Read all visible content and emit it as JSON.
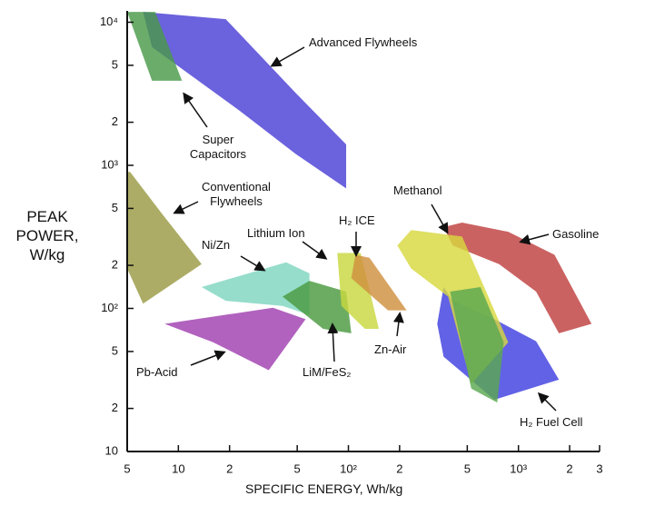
{
  "chart_data": {
    "type": "region",
    "x_label": "SPECIFIC ENERGY, Wh/kg",
    "y_label": "PEAK POWER, W/kg",
    "xscale": "log",
    "yscale": "log",
    "xlim": [
      5,
      3000
    ],
    "ylim": [
      10,
      12000
    ],
    "xticks": [
      5,
      10,
      {
        "value": 20,
        "label": "2"
      },
      {
        "value": 50,
        "label": "5"
      },
      {
        "value": 100,
        "label": "10²"
      },
      {
        "value": 200,
        "label": "2"
      },
      {
        "value": 500,
        "label": "5"
      },
      {
        "value": 1000,
        "label": "10³"
      },
      {
        "value": 2000,
        "label": "2"
      },
      {
        "value": 3000,
        "label": "3"
      }
    ],
    "yticks": [
      10,
      {
        "value": 20,
        "label": "2"
      },
      {
        "value": 50,
        "label": "5"
      },
      {
        "value": 100,
        "label": "10²"
      },
      {
        "value": 200,
        "label": "2"
      },
      {
        "value": 500,
        "label": "5"
      },
      {
        "value": 1000,
        "label": "10³"
      },
      {
        "value": 2000,
        "label": "2"
      },
      {
        "value": 5000,
        "label": "5"
      },
      {
        "value": 10000,
        "label": "10⁴"
      }
    ],
    "regions": [
      {
        "color": "#4b3fd6",
        "points": [
          [
            6.2,
            11800
          ],
          [
            19,
            10500
          ],
          [
            49,
            3200
          ],
          [
            97,
            1400
          ],
          [
            97,
            690
          ],
          [
            49,
            1200
          ],
          [
            23,
            2400
          ],
          [
            7,
            6700
          ]
        ]
      },
      {
        "color": "#4a9a4a",
        "points": [
          [
            5,
            11800
          ],
          [
            7.3,
            11800
          ],
          [
            10.5,
            3900
          ],
          [
            7,
            3900
          ]
        ]
      },
      {
        "color": "#9a9a44",
        "points": [
          [
            5,
            900
          ],
          [
            5.2,
            900
          ],
          [
            8,
            460
          ],
          [
            13.7,
            204
          ],
          [
            6.2,
            108
          ],
          [
            5,
            190
          ]
        ]
      },
      {
        "color": "#a040b0",
        "points": [
          [
            8.3,
            78
          ],
          [
            36,
            101
          ],
          [
            56,
            84
          ],
          [
            34,
            37
          ],
          [
            16,
            58
          ]
        ]
      },
      {
        "color": "#7fd6c0",
        "points": [
          [
            13.7,
            141
          ],
          [
            43,
            210
          ],
          [
            59,
            176
          ],
          [
            59,
            90
          ],
          [
            41,
            104
          ],
          [
            19,
            113
          ]
        ]
      },
      {
        "color": "#4a9a40",
        "points": [
          [
            41,
            121
          ],
          [
            59,
            156
          ],
          [
            97,
            131
          ],
          [
            104,
            67
          ],
          [
            71,
            72
          ]
        ]
      },
      {
        "color": "#c8d840",
        "points": [
          [
            86,
            244
          ],
          [
            118,
            244
          ],
          [
            151,
            72
          ],
          [
            125,
            72
          ],
          [
            91,
            104
          ]
        ]
      },
      {
        "color": "#d09040",
        "points": [
          [
            110,
            237
          ],
          [
            133,
            226
          ],
          [
            220,
            97
          ],
          [
            171,
            97
          ],
          [
            104,
            163
          ]
        ]
      },
      {
        "color": "#c04040",
        "points": [
          [
            363,
            370
          ],
          [
            466,
            398
          ],
          [
            871,
            343
          ],
          [
            1630,
            237
          ],
          [
            2690,
            78
          ],
          [
            1730,
            67
          ],
          [
            1270,
            131
          ],
          [
            769,
            204
          ],
          [
            411,
            275
          ]
        ]
      },
      {
        "color": "#4040e0",
        "points": [
          [
            363,
            141
          ],
          [
            411,
            113
          ],
          [
            722,
            84
          ],
          [
            1270,
            59
          ],
          [
            1730,
            31.8
          ],
          [
            722,
            23
          ],
          [
            363,
            46
          ],
          [
            333,
            78
          ]
        ]
      },
      {
        "color": "#d8d840",
        "points": [
          [
            194,
            275
          ],
          [
            234,
            353
          ],
          [
            466,
            318
          ],
          [
            871,
            58
          ],
          [
            528,
            29.6
          ],
          [
            386,
            121
          ],
          [
            234,
            190
          ]
        ]
      },
      {
        "color": "#5aa850",
        "points": [
          [
            396,
            131
          ],
          [
            598,
            141
          ],
          [
            819,
            58
          ],
          [
            750,
            22
          ],
          [
            528,
            27.5
          ]
        ]
      }
    ],
    "annotations": [
      "Advanced Flywheels",
      "Super Capacitors",
      "Conventional Flywheels",
      "Ni/Zn",
      "Lithium Ion",
      "H₂ ICE",
      "Zn-Air",
      "LiM/FeS₂",
      "Pb-Acid",
      "Methanol",
      "Gasoline",
      "H₂ Fuel Cell"
    ]
  }
}
